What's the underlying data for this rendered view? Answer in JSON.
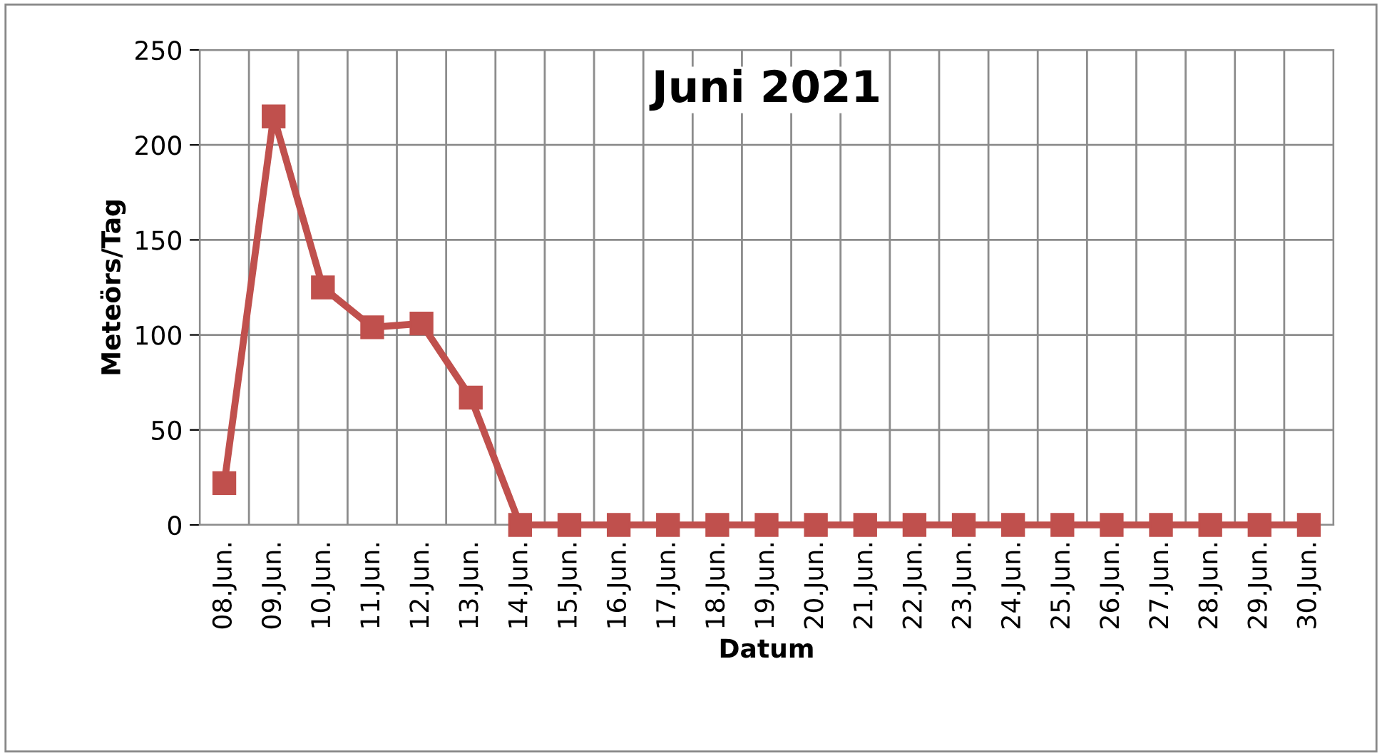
{
  "chart_data": {
    "type": "line",
    "title": "Juni 2021",
    "xlabel": "Datum",
    "ylabel": "Meteörs/Tag",
    "categories": [
      "08.Jun.",
      "09.Jun.",
      "10.Jun.",
      "11.Jun.",
      "12.Jun.",
      "13.Jun.",
      "14.Jun.",
      "15.Jun.",
      "16.Jun.",
      "17.Jun.",
      "18.Jun.",
      "19.Jun.",
      "20.Jun.",
      "21.Jun.",
      "22.Jun.",
      "23.Jun.",
      "24.Jun.",
      "25.Jun.",
      "26.Jun.",
      "27.Jun.",
      "28.Jun.",
      "29.Jun.",
      "30.Jun."
    ],
    "series": [
      {
        "color": "#c0504d",
        "values": [
          22,
          215,
          125,
          104,
          106,
          67,
          0,
          0,
          0,
          0,
          0,
          0,
          0,
          0,
          0,
          0,
          0,
          0,
          0,
          0,
          0,
          0,
          0
        ]
      }
    ],
    "ylim": [
      0,
      250
    ],
    "yticks": [
      0,
      50,
      100,
      150,
      200,
      250
    ],
    "grid": true,
    "marker": "square",
    "line_style": "solid",
    "legend": false
  }
}
